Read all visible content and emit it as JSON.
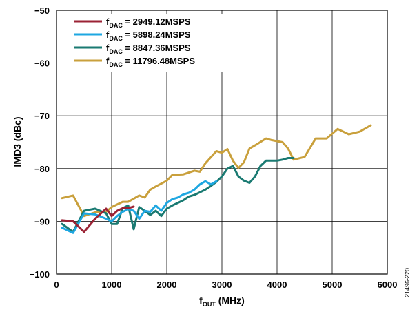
{
  "chart_data": {
    "type": "line",
    "xlabel_main": "f",
    "xlabel_sub": "OUT",
    "xlabel_unit": " (MHz)",
    "ylabel": "IMD3 (dBc)",
    "xlim": [
      0,
      6000
    ],
    "ylim": [
      -100,
      -50
    ],
    "xticks": [
      0,
      1000,
      2000,
      3000,
      4000,
      5000,
      6000
    ],
    "yticks": [
      -100,
      -90,
      -80,
      -70,
      -60,
      -50
    ],
    "xtick_labels": [
      "0",
      "1000",
      "2000",
      "3000",
      "4000",
      "5000",
      "6000"
    ],
    "ytick_labels": [
      "−100",
      "−90",
      "−80",
      "−70",
      "−60",
      "−50"
    ],
    "grid": true,
    "legend_position": "top-left",
    "series": [
      {
        "name_main": "f",
        "name_sub": "DAC",
        "name_rest": " = 2949.12MSPS",
        "color": "#9b2335",
        "x": [
          100,
          300,
          500,
          700,
          900,
          1000,
          1100,
          1200,
          1300,
          1400
        ],
        "y": [
          -89.8,
          -90.0,
          -92.0,
          -89.5,
          -87.6,
          -89.0,
          -88.0,
          -87.5,
          -87.5,
          -87.2
        ]
      },
      {
        "name_main": "f",
        "name_sub": "DAC",
        "name_rest": " = 5898.24MSPS",
        "color": "#1ea7e1",
        "x": [
          100,
          300,
          500,
          700,
          900,
          1000,
          1100,
          1200,
          1300,
          1400,
          1500,
          1600,
          1700,
          1800,
          1900,
          2000,
          2100,
          2200,
          2300,
          2400,
          2500,
          2600,
          2700,
          2800,
          2900
        ],
        "y": [
          -91.2,
          -92.2,
          -88.5,
          -88.7,
          -89.5,
          -90.0,
          -89.0,
          -88.2,
          -87.7,
          -88.0,
          -89.5,
          -88.0,
          -88.2,
          -87.0,
          -88.0,
          -86.5,
          -85.8,
          -85.5,
          -84.9,
          -84.6,
          -84.0,
          -83.0,
          -82.4,
          -83.0,
          -82.4
        ]
      },
      {
        "name_main": "f",
        "name_sub": "DAC",
        "name_rest": " = 8847.36MSPS",
        "color": "#1a7a72",
        "x": [
          100,
          300,
          500,
          700,
          900,
          1000,
          1100,
          1200,
          1300,
          1400,
          1500,
          1600,
          1700,
          1800,
          1900,
          2000,
          2100,
          2200,
          2300,
          2400,
          2500,
          2600,
          2700,
          2800,
          2900,
          3000,
          3100,
          3200,
          3300,
          3400,
          3500,
          3600,
          3700,
          3800,
          3900,
          4000,
          4100,
          4200,
          4300
        ],
        "y": [
          -90.5,
          -92.0,
          -88.0,
          -87.6,
          -88.5,
          -90.5,
          -90.5,
          -87.5,
          -87.0,
          -91.5,
          -87.3,
          -88.0,
          -88.8,
          -88.0,
          -89.0,
          -87.6,
          -87.0,
          -86.5,
          -86.0,
          -85.3,
          -85.0,
          -84.5,
          -84.0,
          -83.3,
          -82.5,
          -81.5,
          -80.0,
          -79.5,
          -81.5,
          -82.3,
          -82.7,
          -81.5,
          -79.5,
          -78.5,
          -78.5,
          -78.5,
          -78.3,
          -78.0,
          -78.0
        ]
      },
      {
        "name_main": "f",
        "name_sub": "DAC",
        "name_rest": " = 11796.48MSPS",
        "color": "#c9a03c",
        "x": [
          100,
          300,
          500,
          700,
          900,
          1000,
          1100,
          1200,
          1300,
          1500,
          1600,
          1700,
          1800,
          2000,
          2100,
          2300,
          2500,
          2600,
          2700,
          2900,
          3000,
          3100,
          3200,
          3300,
          3400,
          3500,
          3600,
          3800,
          3900,
          4000,
          4100,
          4200,
          4300,
          4500,
          4700,
          4900,
          5100,
          5300,
          5500,
          5700
        ],
        "y": [
          -85.6,
          -85.1,
          -89.0,
          -88.3,
          -88.2,
          -87.3,
          -86.8,
          -86.3,
          -86.3,
          -85.1,
          -85.5,
          -84.0,
          -83.4,
          -82.3,
          -81.2,
          -81.1,
          -80.4,
          -80.6,
          -79.0,
          -76.7,
          -77.0,
          -76.3,
          -78.5,
          -79.9,
          -78.8,
          -76.2,
          -75.6,
          -74.3,
          -74.6,
          -74.8,
          -75.0,
          -76.2,
          -78.3,
          -77.8,
          -74.3,
          -74.3,
          -72.5,
          -73.5,
          -73.0,
          -71.8
        ]
      }
    ]
  },
  "side_note": "21496-220"
}
